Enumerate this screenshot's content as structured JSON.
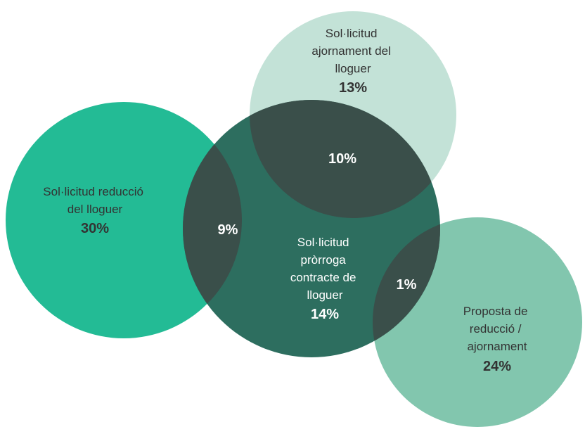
{
  "colors": {
    "reduccio": "#23BB95",
    "ajornament": "#C3E2D7",
    "prorroga": "#2D6E5F",
    "proposta": "#82C6AE",
    "overlap_dark": "#3A4F4A",
    "text_dark": "#333333",
    "text_light": "#ffffff"
  },
  "sets": {
    "reduccio": {
      "label_lines": [
        "Sol·licitud reducció",
        "del lloguer"
      ],
      "value": "30%"
    },
    "ajornament": {
      "label_lines": [
        "Sol·licitud",
        "ajornament del",
        "lloguer"
      ],
      "value": "13%"
    },
    "prorroga": {
      "label_lines": [
        "Sol·licitud",
        "pròrroga",
        "contracte de",
        "lloguer"
      ],
      "value": "14%"
    },
    "proposta": {
      "label_lines": [
        "Proposta de",
        "reducció /",
        "ajornament"
      ],
      "value": "24%"
    }
  },
  "overlaps": {
    "reduccio_prorroga": "9%",
    "ajornament_prorroga": "10%",
    "prorroga_proposta": "1%"
  }
}
